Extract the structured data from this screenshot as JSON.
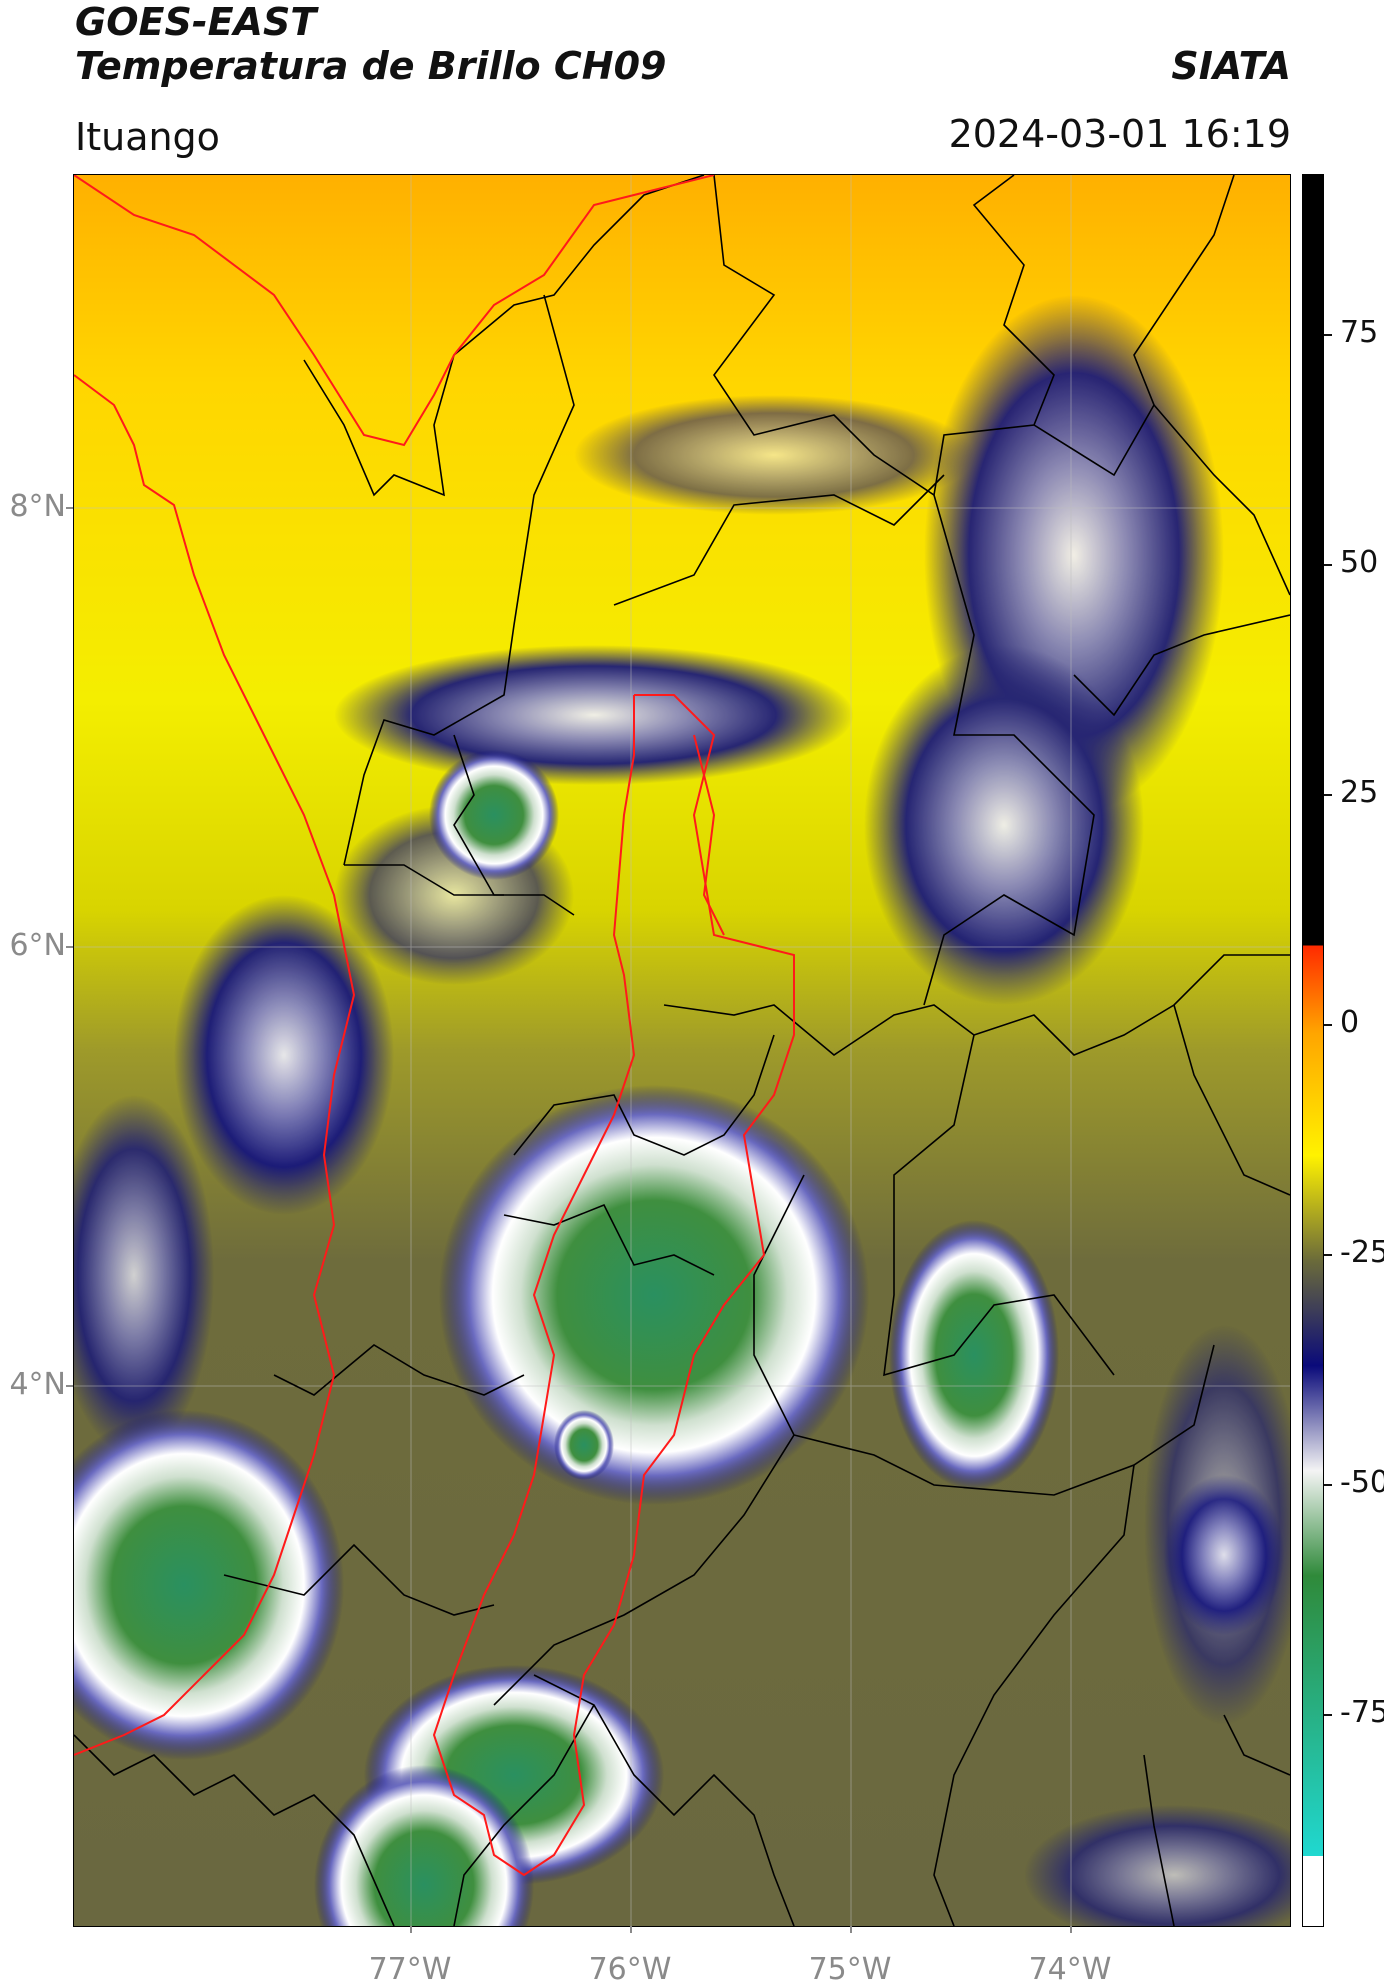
{
  "header": {
    "satellite": "GOES-EAST",
    "product": "Temperatura de Brillo CH09",
    "organization": "SIATA",
    "region": "Ituango",
    "datetime": "2024-03-01 16:19"
  },
  "map": {
    "lat_labels": [
      "8°N",
      "6°N",
      "4°N"
    ],
    "lon_labels": [
      "77°W",
      "76°W",
      "75°W",
      "74°W"
    ],
    "lat_values": [
      8,
      6,
      4
    ],
    "lon_values": [
      -77,
      -76,
      -75,
      -74
    ]
  },
  "colorbar": {
    "ticks": [
      "75",
      "50",
      "25",
      "0",
      "-25",
      "-50",
      "-75"
    ],
    "tick_values": [
      75,
      50,
      25,
      0,
      -25,
      -50,
      -75
    ],
    "range": [
      -95,
      90
    ],
    "colors": {
      "warm": "#000000",
      "hot": "#ff2a00",
      "orange": "#ffa500",
      "yellow": "#fff200",
      "olive": "#6b6b3a",
      "navy": "#0a0a7a",
      "white": "#f4f4f4",
      "green": "#2f8a3a",
      "cyan": "#20d8d0"
    }
  },
  "outline_colors": {
    "department_border": "#ff1a1a",
    "municipal_borders": "#000000"
  }
}
